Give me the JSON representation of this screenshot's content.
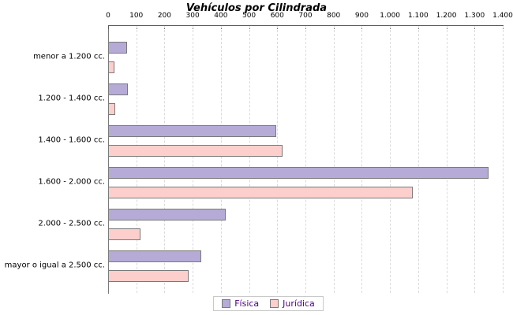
{
  "title": "Vehículos por Cilindrada",
  "colors": {
    "fisica_fill": "#b5abd6",
    "juridica_fill": "#fccfcc",
    "bar_border": "#7a7a7a",
    "axis_line": "#5a5a5a",
    "gridline": "#dadada",
    "legend_text": "#4b0082",
    "background": "#ffffff"
  },
  "chart_data": {
    "type": "bar",
    "orientation": "horizontal",
    "title": "Vehículos por Cilindrada",
    "categories": [
      "menor a 1.200 cc.",
      "1.200 - 1.400 cc.",
      "1.400 - 1.600 cc.",
      "1.600 - 2.000 cc.",
      "2.000 - 2.500 cc.",
      "mayor o igual a 2.500 cc."
    ],
    "series": [
      {
        "name": "Física",
        "color": "#b5abd6",
        "values": [
          67,
          70,
          595,
          1350,
          418,
          330
        ]
      },
      {
        "name": "Jurídica",
        "color": "#fccfcc",
        "values": [
          22,
          24,
          620,
          1080,
          115,
          285
        ]
      }
    ],
    "xlabel": "",
    "ylabel": "",
    "xlim": [
      0,
      1400
    ],
    "x_ticks": [
      0,
      100,
      200,
      300,
      400,
      500,
      600,
      700,
      800,
      900,
      1000,
      1100,
      1200,
      1300,
      1400
    ],
    "x_tick_labels": [
      "0",
      "100",
      "200",
      "300",
      "400",
      "500",
      "600",
      "700",
      "800",
      "900",
      "1.000",
      "1.100",
      "1.200",
      "1.300",
      "1.400"
    ],
    "grid": true,
    "legend_position": "bottom"
  }
}
